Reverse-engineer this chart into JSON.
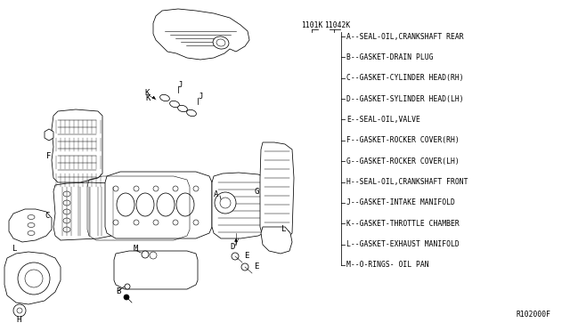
{
  "background_color": "#ffffff",
  "legend_items": [
    "A--SEAL-OIL,CRANKSHAFT REAR",
    "B--GASKET-DRAIN PLUG",
    "C--GASKET-CYLINDER HEAD(RH)",
    "D--GASKET-SYLINDER HEAD(LH)",
    "E--SEAL-OIL,VALVE",
    "F--GASKET-ROCKER COVER(RH)",
    "G--GASKET-ROCKER COVER(LH)",
    "H--SEAL-OIL,CRANKSHAFT FRONT",
    "J--GASKET-INTAKE MANIFOLD",
    "K--GASKET-THROTTLE CHAMBER",
    "L--GASKET-EXHAUST MANIFOLD",
    "M--O-RINGS- OIL PAN"
  ],
  "pn1": "1101K",
  "pn2": "11042K",
  "ref_code": "R102000F",
  "line_color": "#000000",
  "text_color": "#000000",
  "font_size_legend": 5.8,
  "font_size_pn": 5.8,
  "font_size_ref": 5.8,
  "lw_main": 0.55
}
